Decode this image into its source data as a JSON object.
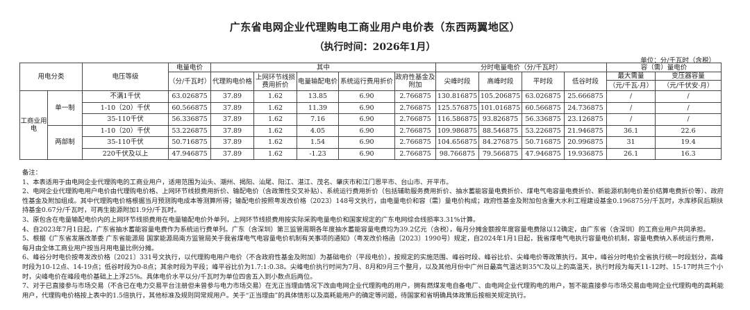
{
  "title": "广东省电网企业代理购电工商业用户电价表（东西两翼地区）",
  "subtitle": "（执行时间：2026年1月）",
  "unit": "单位：分/千瓦时（含税）",
  "headers": {
    "category": "用电分类",
    "voltage": "电压等级",
    "energy_price": "电量电价",
    "energy_price_unit": "（分/千瓦时）",
    "of_which": "其中",
    "proxy_price": "代理购电价格",
    "line_loss": "上网环节线损费用折价",
    "transmission": "电量输配电价",
    "system_cost": "系统运行费用折价",
    "gov_fund": "政府性基金及附加",
    "tou": "分时电量电价（分/千瓦时）",
    "peak_top": "尖峰时段",
    "peak": "高峰时段",
    "flat": "平时段",
    "valley": "低谷时段",
    "capacity": "容（需）量电价",
    "max_demand": "最大需量",
    "max_demand_unit": "（元/千瓦·月）",
    "transformer": "变压器容量",
    "transformer_unit": "（元/千伏安·月）"
  },
  "category_label": "工商业用电",
  "groups": {
    "single": "单一制",
    "two_part": "两部制"
  },
  "rows": [
    {
      "voltage": "不满1千伏",
      "energy": "63.026875",
      "proxy": "37.89",
      "loss": "1.62",
      "trans": "13.85",
      "sys": "6.90",
      "gov": "2.766875",
      "top": "130.816875",
      "peak": "105.206875",
      "flat": "63.026875",
      "valley": "25.666875",
      "demand": "/",
      "transformer": "/"
    },
    {
      "voltage": "1-10（20）千伏",
      "energy": "60.566875",
      "proxy": "37.89",
      "loss": "1.62",
      "trans": "11.39",
      "sys": "6.90",
      "gov": "2.766875",
      "top": "125.576875",
      "peak": "101.016875",
      "flat": "60.566875",
      "valley": "24.736875",
      "demand": "/",
      "transformer": "/"
    },
    {
      "voltage": "35-110千伏",
      "energy": "56.336875",
      "proxy": "37.89",
      "loss": "1.62",
      "trans": "7.16",
      "sys": "6.90",
      "gov": "2.766875",
      "top": "116.586875",
      "peak": "93.826875",
      "flat": "56.336875",
      "valley": "23.126875",
      "demand": "/",
      "transformer": "/"
    },
    {
      "voltage": "1-10（20）千伏",
      "energy": "53.226875",
      "proxy": "37.89",
      "loss": "1.62",
      "trans": "4.05",
      "sys": "6.90",
      "gov": "2.766875",
      "top": "109.986875",
      "peak": "88.546875",
      "flat": "53.226875",
      "valley": "21.946875",
      "demand": "36.1",
      "transformer": "22.6"
    },
    {
      "voltage": "35-110千伏",
      "energy": "50.716875",
      "proxy": "37.89",
      "loss": "1.62",
      "trans": "1.54",
      "sys": "6.90",
      "gov": "2.766875",
      "top": "104.656875",
      "peak": "84.276875",
      "flat": "50.716875",
      "valley": "20.996875",
      "demand": "31",
      "transformer": "19.4"
    },
    {
      "voltage": "220千伏及以上",
      "energy": "47.946875",
      "proxy": "37.89",
      "loss": "1.62",
      "trans": "-1.23",
      "sys": "6.90",
      "gov": "2.766875",
      "top": "98.766875",
      "peak": "79.566875",
      "flat": "47.946875",
      "valley": "19.936875",
      "demand": "26.1",
      "transformer": "16.3"
    }
  ],
  "notes_title": "备注：",
  "notes": [
    "1、本表适用于由电网企业代理购电的工商业用户，适用范围为汕头、潮州、揭阳、汕尾、阳江、湛江、茂名、肇庆市和江门恩平市、台山市、开平市。",
    "2、电网企业代理购电用户电价由代理购电价格、上网环节线损费用折价、输配电价（含政策性交叉补贴）、系统运行费用折价（包括辅助服务费用折价、抽水蓄能容量电费折价、煤电气电容量电费折价、新能源机制电价差价结算电费折价等）、政府性基金及附加组成。其中代理购电价格根据当月预测购电成本等测算所得；输配电价按照粤发改价格（2023）148号文执行，由电量电价和容（需）量电价构成；政府性基金及附加包含重大水利工程建设基金0.196875分/千瓦时，水库移民后期扶持基金0.67分/千瓦时，可再生能源附加1.9分/千瓦时。",
    "3、原包含在电量输配电价内的上网环节线损费用在电量输配电价外单列，上网环节线损费用按实际采购电量电价和国家规定的广东电网综合线损率3.31%计算。",
    "4、自2023年7月1日起，广东省抽水蓄能容量电费作为系统运行费单列。广东（含深圳）第三监管周期各年度抽水蓄能容量电费均为39.2亿元（含税），每月分摊金额按年度容量电费除以12确定，由广东省（含深圳）的工商业用户共同承担。",
    "5、根据《广东省发展改革委 广东省能源局 国家能源局南方监管局关于我省煤电气电容量电价机制有关事项的通知》（粤发改价格函〔2023〕1990号）规定，自2024年1月1日起，我省煤电气电执行容量电价机制，容量电费纳入系统运行费用，每月由全体工商业用户按当月用电量比例分摊。",
    "6、峰谷分时电价按粤发改价格〔2021〕331号文执行，以代理购电用户电价（不含政府性基金及附加）为基础电价（平段电价），按规定的实施范围、峰谷时段、峰谷比价、尖峰电价等政策执行。其中，峰谷分时电价全省执行统一时段划分，高峰时段为10-12点、14-19点；低谷时段为0-8点；其余时段为平段；峰平谷比价为1.7:1:0.38。尖峰电价执行时间为7月、8月和9月三个整月，以及其他月份中广州日最高气温达到35℃及以上的高温天，执行时段为每天11-12时、15-17时共三个小时，尖峰电价在峰段电价基础上上浮25%。具体电价水平以分/千瓦时为单位四舍五入到小数点后两位。",
    "7、对于已直接参与市场交易（不含已在电力交易平台注册但未曾参与电力市场交易）在无正当理由情况下改由电网企业代理购电的用户，拥有燃煤发电自备电厂、由电网企业代理购电的用户，暂不能直接参与市场交易由电网企业代理购电的高耗能用户，代理购电价格按上表中的1.5倍执行，其他标准及规则同常规用户。关于“正当理由”的具体情形以及高耗能用户的确定等问题，待国家和省明确具体政策后按相关规定执行。"
  ]
}
